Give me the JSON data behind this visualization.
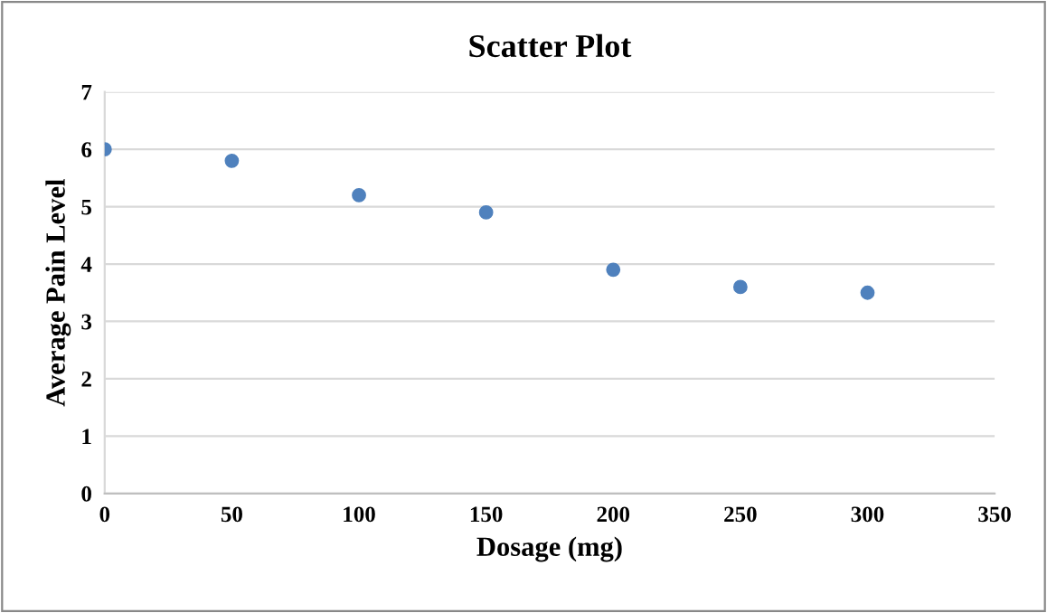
{
  "chart_data": {
    "type": "scatter",
    "title": "Scatter Plot",
    "xlabel": "Dosage (mg)",
    "ylabel": "Average Pain Level",
    "x": [
      0,
      50,
      100,
      150,
      200,
      250,
      300
    ],
    "series": [
      {
        "color": "#4f81bd",
        "values": [
          6,
          5.8,
          5.2,
          4.9,
          3.9,
          3.6,
          3.5
        ]
      }
    ],
    "xlim": [
      0,
      350
    ],
    "xticks": [
      0,
      50,
      100,
      150,
      200,
      250,
      300,
      350
    ],
    "ylim": [
      0,
      7
    ],
    "yticks": [
      0,
      1,
      2,
      3,
      4,
      5,
      6,
      7
    ],
    "grid": "y",
    "marker": "circle"
  }
}
